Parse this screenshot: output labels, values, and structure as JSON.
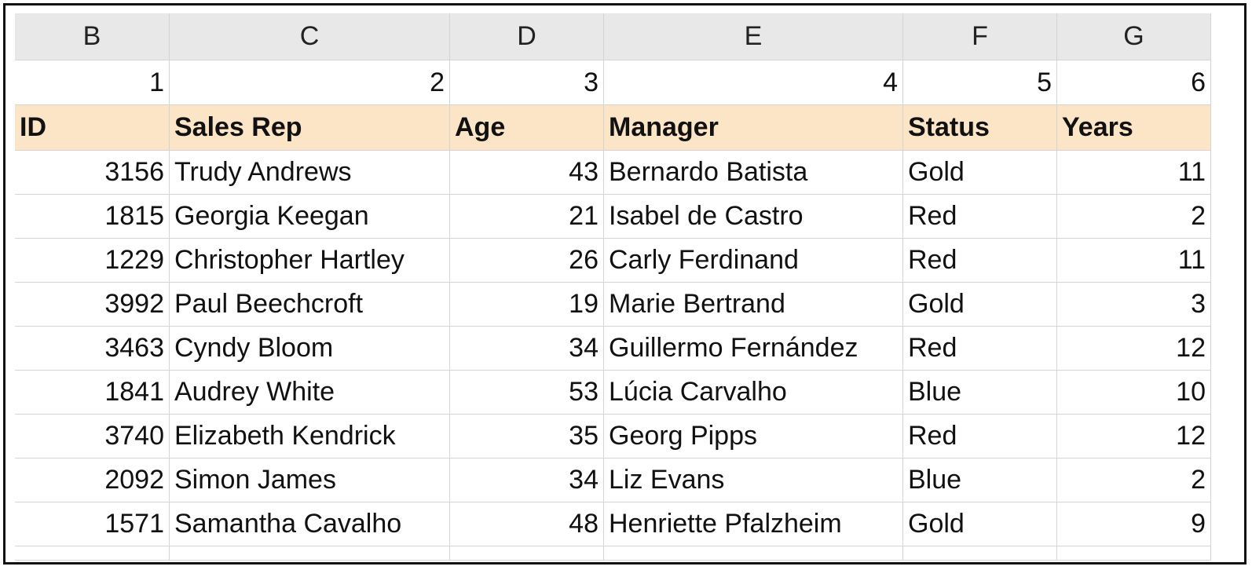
{
  "column_letters": [
    "B",
    "C",
    "D",
    "E",
    "F",
    "G"
  ],
  "column_numbers": [
    "1",
    "2",
    "3",
    "4",
    "5",
    "6"
  ],
  "headers": [
    "ID",
    "Sales Rep",
    "Age",
    "Manager",
    "Status",
    "Years"
  ],
  "rows": [
    [
      "3156",
      "Trudy Andrews",
      "43",
      "Bernardo Batista",
      "Gold",
      "11"
    ],
    [
      "1815",
      "Georgia Keegan",
      "21",
      "Isabel de Castro",
      "Red",
      "2"
    ],
    [
      "1229",
      "Christopher Hartley",
      "26",
      "Carly Ferdinand",
      "Red",
      "11"
    ],
    [
      "3992",
      "Paul Beechcroft",
      "19",
      "Marie Bertrand",
      "Gold",
      "3"
    ],
    [
      "3463",
      "Cyndy Bloom",
      "34",
      "Guillermo Fernández",
      "Red",
      "12"
    ],
    [
      "1841",
      "Audrey White",
      "53",
      "Lúcia Carvalho",
      "Blue",
      "10"
    ],
    [
      "3740",
      "Elizabeth Kendrick",
      "35",
      "Georg Pipps",
      "Red",
      "12"
    ],
    [
      "2092",
      "Simon James",
      "34",
      "Liz Evans",
      "Blue",
      "2"
    ],
    [
      "1571",
      "Samantha Cavalho",
      "48",
      "Henriette Pfalzheim",
      "Gold",
      "9"
    ]
  ],
  "colors": {
    "column_header_bg": "#e8e8e8",
    "table_header_bg": "#fbe5c6",
    "gridline": "#d4d4d4"
  }
}
